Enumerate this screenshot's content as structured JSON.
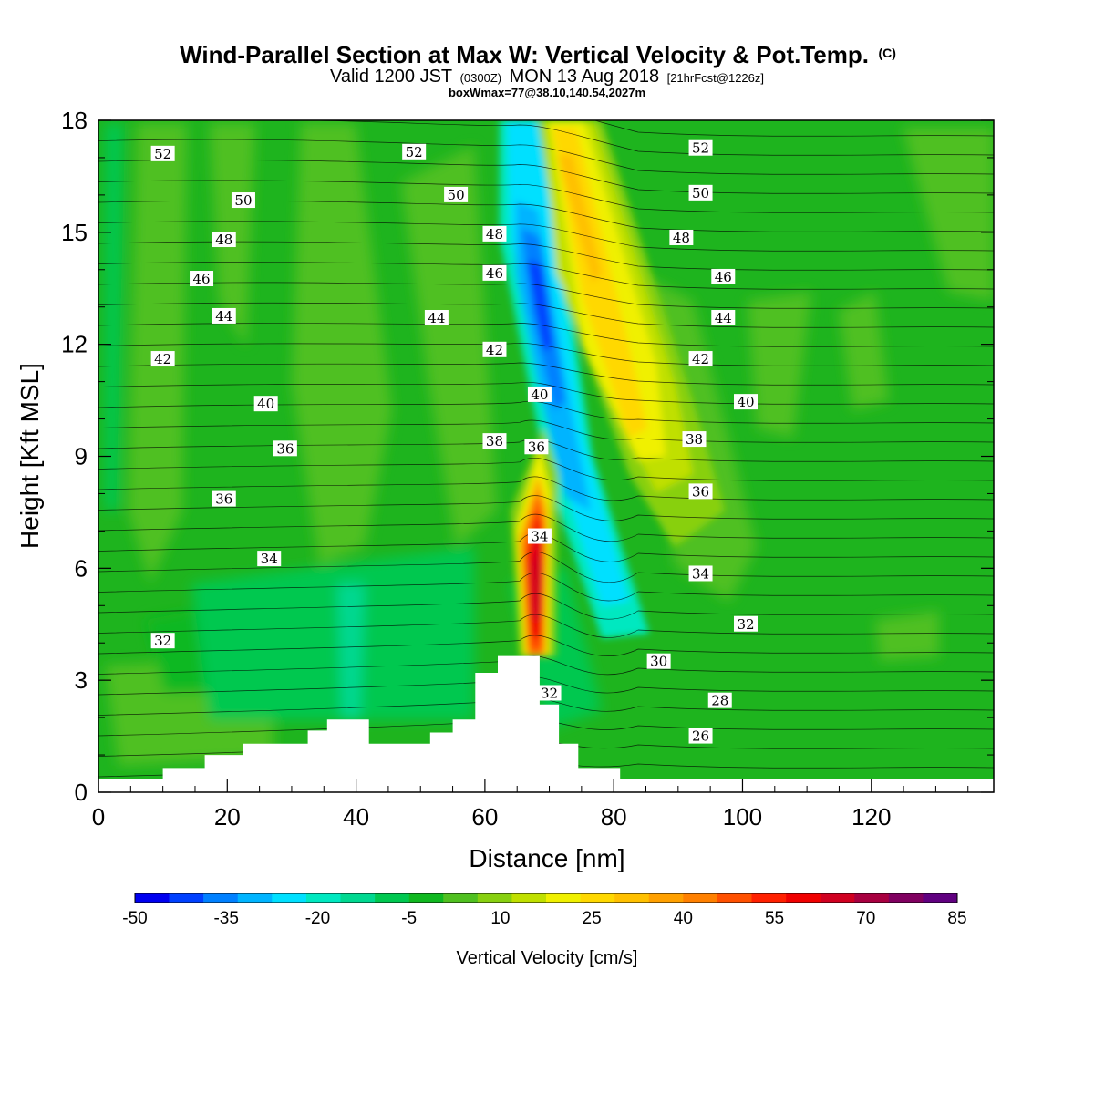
{
  "header": {
    "title_main": "Wind-Parallel Section at Max W: Vertical Velocity & Pot.Temp.",
    "title_mark": "(C)",
    "valid_a": "Valid 1200 JST",
    "valid_b": "(0300Z)",
    "valid_c": "MON 13 Aug 2018",
    "valid_d": "[21hrFcst@1226z]",
    "info": "boxWmax=77@38.10,140.54,2027m"
  },
  "chart_data": {
    "type": "heatmap",
    "title": "Wind-Parallel Section at Max W: Vertical Velocity & Pot.Temp.",
    "xlabel": "Distance [nm]",
    "ylabel": "Height [Kft MSL]",
    "xlim": [
      0,
      139
    ],
    "ylim": [
      0,
      18
    ],
    "x_ticks": [
      "0",
      "20",
      "40",
      "60",
      "80",
      "100",
      "120"
    ],
    "y_ticks": [
      "0",
      "3",
      "6",
      "9",
      "12",
      "15",
      "18"
    ],
    "colorbar": {
      "label": "Vertical Velocity [cm/s]",
      "tick_labels": [
        "-50",
        "-35",
        "-20",
        "-5",
        "10",
        "25",
        "40",
        "55",
        "70",
        "85"
      ],
      "colors": [
        "#0000f0",
        "#0040ff",
        "#0080ff",
        "#00b4ff",
        "#00e0ff",
        "#00e8c0",
        "#00d890",
        "#00c850",
        "#10b820",
        "#50c020",
        "#88d010",
        "#c0e000",
        "#f0f000",
        "#ffd800",
        "#ffc000",
        "#ffa000",
        "#ff8000",
        "#ff5000",
        "#ff2000",
        "#f00000",
        "#d00020",
        "#a80040",
        "#800060",
        "#600080"
      ]
    },
    "vertical_velocity_features_cm_s": [
      {
        "feature": "downdraft band (min)",
        "x": 68,
        "y": 13,
        "value": -45
      },
      {
        "feature": "downdraft band lower",
        "x": 75,
        "y": 6,
        "value": -20
      },
      {
        "feature": "updraft band (upper)",
        "x": 78,
        "y": 13,
        "value": 25
      },
      {
        "feature": "updraft max over peak",
        "x": 68,
        "y": 6,
        "value": 70
      },
      {
        "feature": "lee-side downdraft",
        "x": 76,
        "y": 4,
        "value": -10
      },
      {
        "feature": "background",
        "value": 0
      }
    ],
    "terrain_profile_kft": {
      "x": [
        0,
        10,
        10,
        16.5,
        16.5,
        22.5,
        22.5,
        32.5,
        32.5,
        35.5,
        35.5,
        42,
        42,
        51.5,
        51.5,
        55,
        55,
        58.5,
        58.5,
        62,
        62,
        68.5,
        68.5,
        71.5,
        71.5,
        74.5,
        74.5,
        81,
        81,
        139
      ],
      "y": [
        0.35,
        0.35,
        0.65,
        0.65,
        1.0,
        1.0,
        1.3,
        1.3,
        1.65,
        1.65,
        1.95,
        1.95,
        1.3,
        1.3,
        1.6,
        1.6,
        1.95,
        1.95,
        3.2,
        3.2,
        3.65,
        3.65,
        2.35,
        2.35,
        1.3,
        1.3,
        0.65,
        0.65,
        0.35,
        0.35
      ]
    },
    "potential_temperature_contour_labels": [
      {
        "text": "52",
        "x": 10,
        "y": 17.1
      },
      {
        "text": "50",
        "x": 22.5,
        "y": 15.85
      },
      {
        "text": "48",
        "x": 19.5,
        "y": 14.8
      },
      {
        "text": "46",
        "x": 16,
        "y": 13.75
      },
      {
        "text": "44",
        "x": 19.5,
        "y": 12.75
      },
      {
        "text": "42",
        "x": 10,
        "y": 11.6
      },
      {
        "text": "40",
        "x": 26,
        "y": 10.4
      },
      {
        "text": "36",
        "x": 29,
        "y": 9.2
      },
      {
        "text": "36",
        "x": 19.5,
        "y": 7.85
      },
      {
        "text": "34",
        "x": 26.5,
        "y": 6.25
      },
      {
        "text": "32",
        "x": 10,
        "y": 4.05
      },
      {
        "text": "52",
        "x": 49,
        "y": 17.15
      },
      {
        "text": "50",
        "x": 55.5,
        "y": 16.0
      },
      {
        "text": "48",
        "x": 61.5,
        "y": 14.95
      },
      {
        "text": "46",
        "x": 61.5,
        "y": 13.9
      },
      {
        "text": "44",
        "x": 52.5,
        "y": 12.7
      },
      {
        "text": "42",
        "x": 61.5,
        "y": 11.85
      },
      {
        "text": "40",
        "x": 68.5,
        "y": 10.65
      },
      {
        "text": "38",
        "x": 61.5,
        "y": 9.4
      },
      {
        "text": "36",
        "x": 68,
        "y": 9.25
      },
      {
        "text": "34",
        "x": 68.5,
        "y": 6.85
      },
      {
        "text": "32",
        "x": 70,
        "y": 2.65
      },
      {
        "text": "52",
        "x": 93.5,
        "y": 17.25
      },
      {
        "text": "50",
        "x": 93.5,
        "y": 16.05
      },
      {
        "text": "48",
        "x": 90.5,
        "y": 14.85
      },
      {
        "text": "46",
        "x": 97,
        "y": 13.8
      },
      {
        "text": "44",
        "x": 97,
        "y": 12.7
      },
      {
        "text": "42",
        "x": 93.5,
        "y": 11.6
      },
      {
        "text": "40",
        "x": 100.5,
        "y": 10.45
      },
      {
        "text": "38",
        "x": 92.5,
        "y": 9.45
      },
      {
        "text": "36",
        "x": 93.5,
        "y": 8.05
      },
      {
        "text": "34",
        "x": 93.5,
        "y": 5.85
      },
      {
        "text": "32",
        "x": 100.5,
        "y": 4.5
      },
      {
        "text": "30",
        "x": 87,
        "y": 3.5
      },
      {
        "text": "28",
        "x": 96.5,
        "y": 2.45
      },
      {
        "text": "26",
        "x": 93.5,
        "y": 1.5
      }
    ],
    "grid": false,
    "legend": "colorbar bottom"
  }
}
